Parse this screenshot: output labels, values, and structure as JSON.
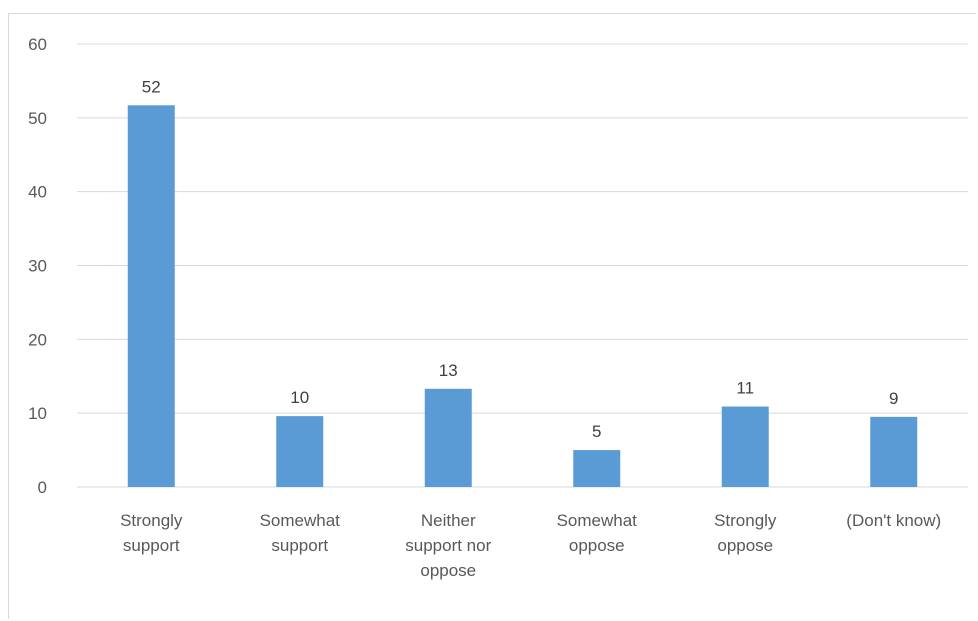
{
  "chart_data": {
    "type": "bar",
    "categories": [
      [
        "Strongly",
        "support"
      ],
      [
        "Somewhat",
        "support"
      ],
      [
        "Neither",
        "support nor",
        "oppose"
      ],
      [
        "Somewhat",
        "oppose"
      ],
      [
        "Strongly",
        "oppose"
      ],
      [
        "(Don't know)"
      ]
    ],
    "values": [
      52,
      10,
      13,
      5,
      11,
      9
    ],
    "data_labels": [
      "52",
      "10",
      "13",
      "5",
      "11",
      "9"
    ],
    "bar_heights_estimated": [
      51.7,
      9.6,
      13.3,
      5.0,
      10.9,
      9.5
    ],
    "ylim": [
      0,
      60
    ],
    "yticks": [
      0,
      10,
      20,
      30,
      40,
      50,
      60
    ],
    "grid": true,
    "legend": "none",
    "title": "",
    "xlabel": "",
    "ylabel": "",
    "colors": {
      "bar": "#5b9bd5",
      "gridline": "#d9d9d9",
      "axis_text": "#595959",
      "data_label_text": "#404040"
    }
  }
}
